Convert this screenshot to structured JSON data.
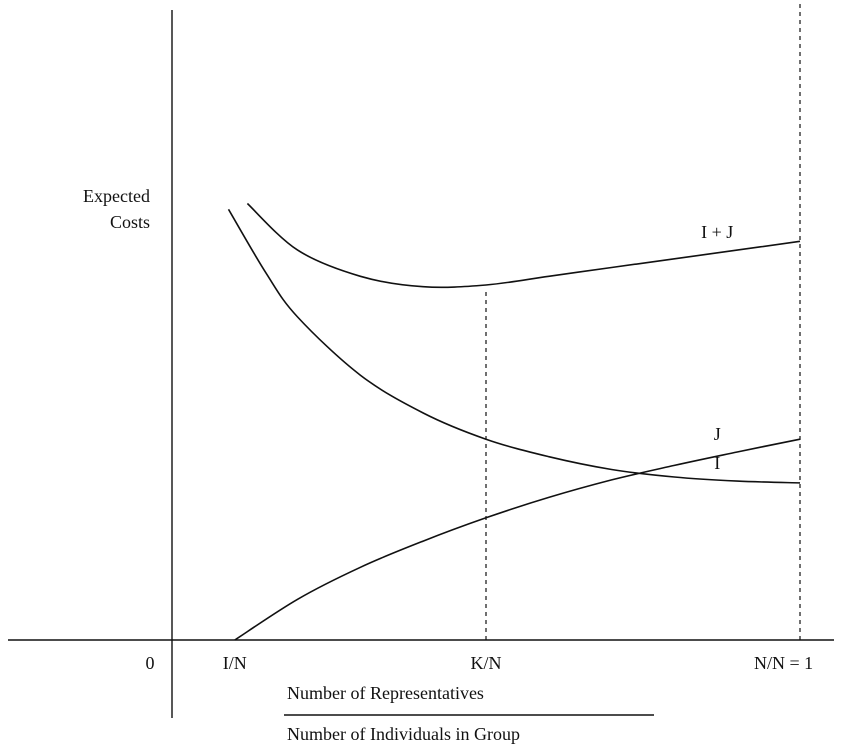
{
  "chart_data": {
    "type": "line",
    "title": "",
    "ylabel_lines": [
      "Expected",
      "Costs"
    ],
    "xlabel_numerator": "Number of Representatives",
    "xlabel_denominator": "Number of Individuals in Group",
    "origin_label": "0",
    "xlim": [
      0,
      1
    ],
    "x_ticks": [
      {
        "label": "I/N",
        "x": 0.1
      },
      {
        "label": "K/N",
        "x": 0.5
      },
      {
        "label": "N/N = 1",
        "x": 1.0
      }
    ],
    "dashed_guides": [
      {
        "x": 0.5,
        "y_from": 0,
        "y_to": 0.6
      },
      {
        "x": 1.0,
        "y_from": 0,
        "y_to": 1.15
      }
    ],
    "series": [
      {
        "name": "I + J",
        "points": [
          [
            0.12,
            0.75
          ],
          [
            0.2,
            0.67
          ],
          [
            0.3,
            0.625
          ],
          [
            0.4,
            0.607
          ],
          [
            0.5,
            0.61
          ],
          [
            0.6,
            0.625
          ],
          [
            0.7,
            0.64
          ],
          [
            0.8,
            0.655
          ],
          [
            0.9,
            0.67
          ],
          [
            1.0,
            0.685
          ]
        ]
      },
      {
        "name": "I",
        "points": [
          [
            0.09,
            0.74
          ],
          [
            0.15,
            0.63
          ],
          [
            0.2,
            0.555
          ],
          [
            0.3,
            0.455
          ],
          [
            0.4,
            0.39
          ],
          [
            0.5,
            0.345
          ],
          [
            0.6,
            0.315
          ],
          [
            0.7,
            0.293
          ],
          [
            0.8,
            0.28
          ],
          [
            0.9,
            0.273
          ],
          [
            1.0,
            0.27
          ]
        ]
      },
      {
        "name": "J",
        "points": [
          [
            0.1,
            0.0
          ],
          [
            0.2,
            0.07
          ],
          [
            0.3,
            0.125
          ],
          [
            0.4,
            0.17
          ],
          [
            0.5,
            0.21
          ],
          [
            0.6,
            0.245
          ],
          [
            0.7,
            0.275
          ],
          [
            0.8,
            0.3
          ],
          [
            0.9,
            0.323
          ],
          [
            1.0,
            0.345
          ]
        ]
      }
    ]
  }
}
